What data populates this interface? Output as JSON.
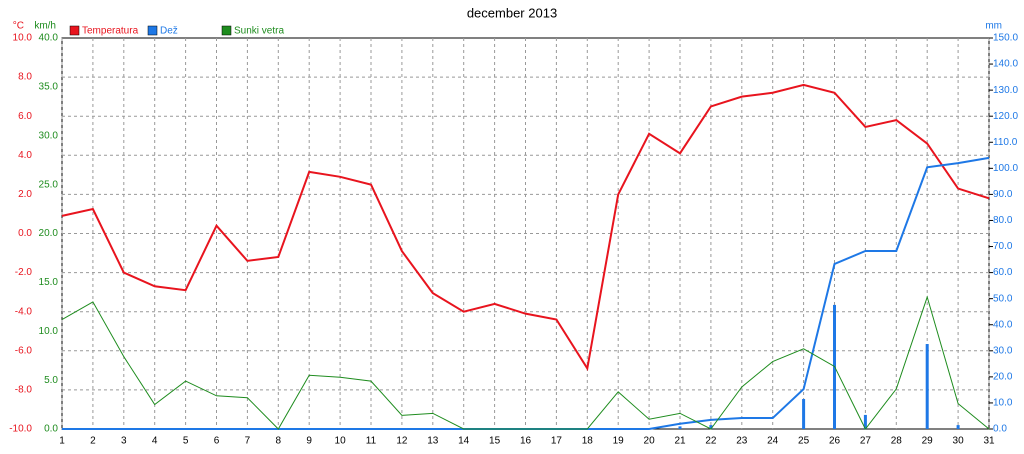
{
  "chart_data": {
    "type": "line",
    "title": "december 2013",
    "y_unit": "°C",
    "y3_unit": "km/h",
    "y2_unit": "mm",
    "x": [
      1,
      2,
      3,
      4,
      5,
      6,
      7,
      8,
      9,
      10,
      11,
      12,
      13,
      14,
      15,
      16,
      17,
      18,
      19,
      20,
      21,
      22,
      23,
      24,
      25,
      26,
      27,
      28,
      29,
      30,
      31
    ],
    "xlim": [
      1,
      31
    ],
    "ylim": [
      -10,
      10
    ],
    "yticks": [
      {
        "value": -10,
        "label": "-10.0"
      },
      {
        "value": -8,
        "label": "-8.0"
      },
      {
        "value": -6,
        "label": "-6.0"
      },
      {
        "value": -4,
        "label": "-4.0"
      },
      {
        "value": -2,
        "label": "-2.0"
      },
      {
        "value": 0,
        "label": "0.0"
      },
      {
        "value": 2,
        "label": "2.0"
      },
      {
        "value": 4,
        "label": "4.0"
      },
      {
        "value": 6,
        "label": "6.0"
      },
      {
        "value": 8,
        "label": "8.0"
      },
      {
        "value": 10,
        "label": "10.0"
      }
    ],
    "y3lim": [
      0,
      40
    ],
    "y3ticks": [
      {
        "value": 0,
        "label": "0.0"
      },
      {
        "value": 5,
        "label": "5.0"
      },
      {
        "value": 10,
        "label": "10.0"
      },
      {
        "value": 15,
        "label": "15.0"
      },
      {
        "value": 20,
        "label": "20.0"
      },
      {
        "value": 25,
        "label": "25.0"
      },
      {
        "value": 30,
        "label": "30.0"
      },
      {
        "value": 35,
        "label": "35.0"
      },
      {
        "value": 40,
        "label": "40.0"
      }
    ],
    "y2lim": [
      0,
      150
    ],
    "y2ticks": [
      {
        "value": 0,
        "label": "0.0"
      },
      {
        "value": 10,
        "label": "10.0"
      },
      {
        "value": 20,
        "label": "20.0"
      },
      {
        "value": 30,
        "label": "30.0"
      },
      {
        "value": 40,
        "label": "40.0"
      },
      {
        "value": 50,
        "label": "50.0"
      },
      {
        "value": 60,
        "label": "60.0"
      },
      {
        "value": 70,
        "label": "70.0"
      },
      {
        "value": 80,
        "label": "80.0"
      },
      {
        "value": 90,
        "label": "90.0"
      },
      {
        "value": 100,
        "label": "100.0"
      },
      {
        "value": 110,
        "label": "110.0"
      },
      {
        "value": 120,
        "label": "120.0"
      },
      {
        "value": 130,
        "label": "130.0"
      },
      {
        "value": 140,
        "label": "140.0"
      },
      {
        "value": 150,
        "label": "150.0"
      }
    ],
    "grid": true,
    "series": [
      {
        "name": "Temperatura",
        "color": "#e8141e",
        "axis": "y",
        "width": 2,
        "values": [
          0.9,
          1.25,
          -2.0,
          -2.7,
          -2.9,
          0.4,
          -1.4,
          -1.2,
          3.15,
          2.9,
          2.5,
          -0.9,
          -3.05,
          -4.0,
          -3.6,
          -4.1,
          -4.4,
          -6.9,
          2.0,
          5.1,
          4.1,
          6.5,
          7.0,
          7.2,
          7.6,
          7.2,
          5.45,
          5.8,
          4.6,
          2.3,
          1.8
        ]
      },
      {
        "name": "Dež",
        "color": "#1e78e6",
        "axis": "y2",
        "width": 2,
        "values": [
          0,
          0,
          0,
          0,
          0,
          0,
          0,
          0,
          0,
          0,
          0,
          0,
          0,
          0,
          0,
          0,
          0,
          0,
          0,
          0,
          2,
          3.5,
          4.2,
          4.2,
          15.3,
          63.3,
          68.3,
          68.3,
          100.4,
          102,
          104
        ],
        "bars": [
          null,
          null,
          null,
          null,
          null,
          null,
          null,
          null,
          null,
          null,
          null,
          null,
          null,
          null,
          null,
          null,
          null,
          null,
          null,
          null,
          1,
          1.5,
          null,
          null,
          11.5,
          47.6,
          5.4,
          null,
          32.6,
          1.5,
          null
        ]
      },
      {
        "name": "Sunki vetra",
        "color": "#1e8c1e",
        "axis": "y3",
        "width": 1,
        "values": [
          11.2,
          13.0,
          7.4,
          2.5,
          4.9,
          3.4,
          3.2,
          0,
          5.5,
          5.3,
          4.9,
          1.4,
          1.6,
          0,
          0,
          0,
          0,
          0,
          3.8,
          1.0,
          1.6,
          0,
          4.3,
          6.9,
          8.2,
          6.4,
          0,
          4.1,
          13.5,
          2.6,
          0
        ]
      }
    ]
  }
}
